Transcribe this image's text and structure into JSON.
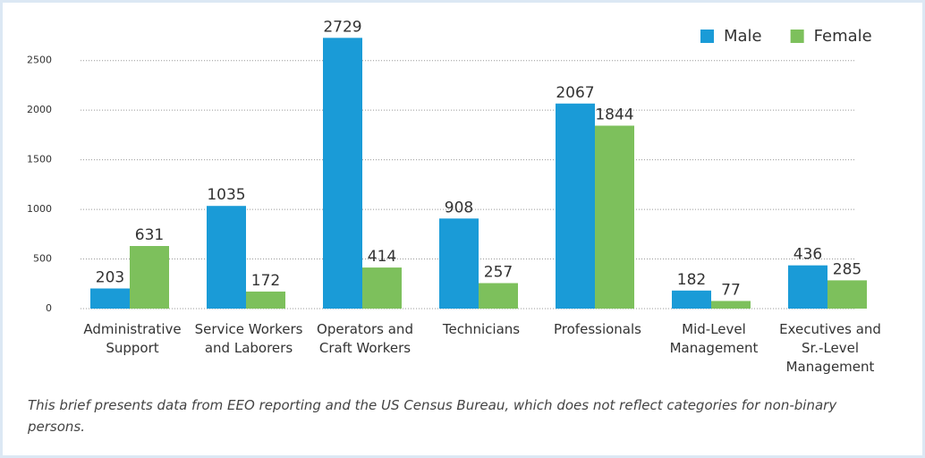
{
  "chart_data": {
    "type": "bar",
    "categories": [
      "Administrative Support",
      "Service Workers and Laborers",
      "Operators and Craft Workers",
      "Technicians",
      "Professionals",
      "Mid-Level Management",
      "Executives and Sr.-Level Management"
    ],
    "series": [
      {
        "name": "Male",
        "color": "#1a9bd7",
        "values": [
          203,
          1035,
          2729,
          908,
          2067,
          182,
          436
        ]
      },
      {
        "name": "Female",
        "color": "#7dc05c",
        "values": [
          631,
          172,
          414,
          257,
          1844,
          77,
          285
        ]
      }
    ],
    "ylim": [
      0,
      2750
    ],
    "yticks": [
      0,
      500,
      1000,
      1500,
      2000,
      2500
    ],
    "grid": true,
    "legend": "top-right",
    "note": "This brief presents data from EEO reporting and the US Census Bureau, which does not reflect categories for non-binary persons."
  }
}
